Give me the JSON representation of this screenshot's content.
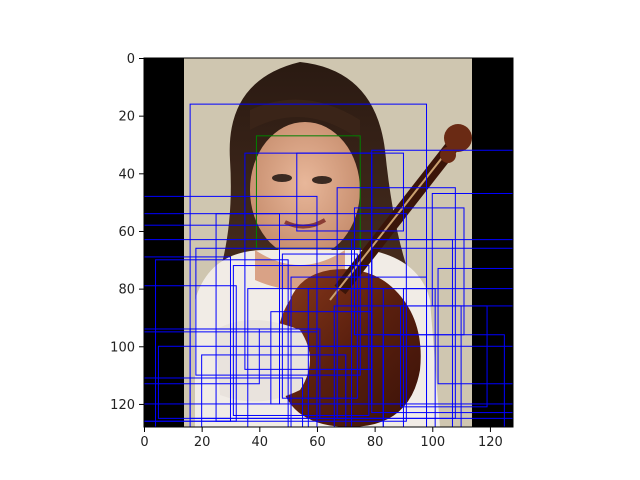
{
  "figure": {
    "subject": "portrait photograph",
    "x_ticks": [
      "0",
      "20",
      "40",
      "60",
      "80",
      "100",
      "120"
    ],
    "y_ticks": [
      "0",
      "20",
      "40",
      "60",
      "80",
      "100",
      "120"
    ],
    "image_extent": [
      0,
      128,
      128,
      0
    ],
    "colors": {
      "box": "#0000ff",
      "highlight_box": "#008000",
      "letterbox": "#000000"
    },
    "boxes": [
      [
        16,
        16,
        98,
        128
      ],
      [
        39,
        27,
        75,
        66
      ],
      [
        53,
        33,
        90,
        60
      ],
      [
        35,
        33,
        79,
        108
      ],
      [
        79,
        32,
        128,
        120
      ],
      [
        67,
        45,
        108,
        125
      ],
      [
        0,
        48,
        60,
        128
      ],
      [
        25,
        54,
        91,
        126
      ],
      [
        0,
        54,
        47,
        120
      ],
      [
        0,
        58,
        60,
        95
      ],
      [
        0,
        63,
        107,
        128
      ],
      [
        18,
        66,
        75,
        110
      ],
      [
        0,
        69,
        30,
        126
      ],
      [
        4,
        70,
        50,
        128
      ],
      [
        31,
        72,
        78,
        124
      ],
      [
        0,
        79,
        32,
        126
      ],
      [
        51,
        76,
        98,
        128
      ],
      [
        36,
        80,
        83,
        128
      ],
      [
        72,
        63,
        128,
        128
      ],
      [
        79,
        66,
        128,
        123
      ],
      [
        100,
        47,
        128,
        86
      ],
      [
        102,
        73,
        128,
        113
      ],
      [
        90,
        80,
        128,
        128
      ],
      [
        5,
        100,
        83,
        125
      ],
      [
        16,
        94,
        61,
        125
      ],
      [
        83,
        96,
        125,
        128
      ],
      [
        44,
        88,
        79,
        120
      ],
      [
        57,
        80,
        101,
        128
      ],
      [
        0,
        94,
        40,
        113
      ],
      [
        60,
        100,
        128,
        125
      ],
      [
        20,
        103,
        70,
        128
      ],
      [
        89,
        86,
        119,
        121
      ],
      [
        0,
        111,
        55,
        128
      ],
      [
        73,
        52,
        111,
        96
      ],
      [
        48,
        68,
        74,
        118
      ],
      [
        66,
        86,
        110,
        128
      ]
    ]
  }
}
